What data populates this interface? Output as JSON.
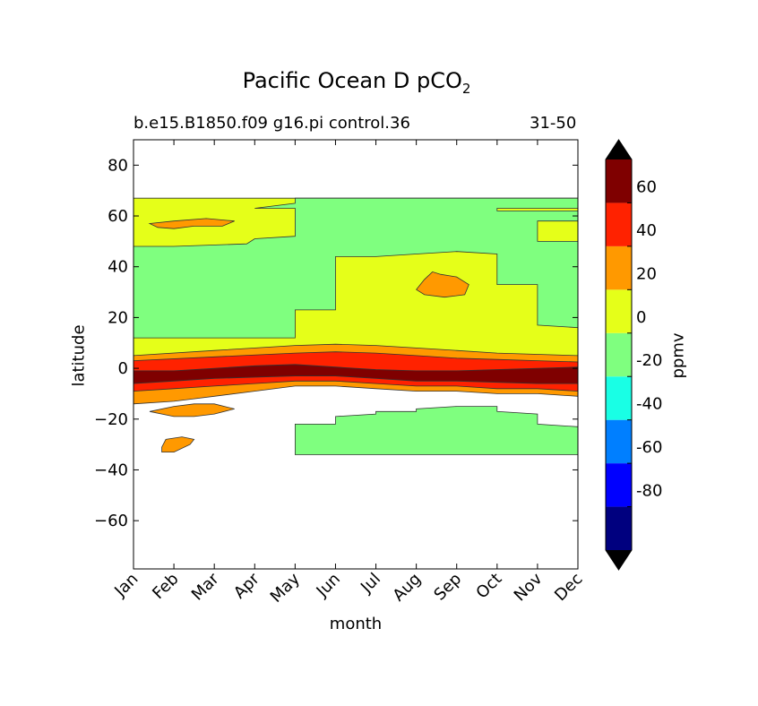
{
  "chart_data": {
    "type": "contourf",
    "title": "Pacific Ocean D pCO",
    "title_subscript": "2",
    "subtitle_left": "b.e15.B1850.f09 g16.pi control.36",
    "subtitle_right": "31-50",
    "xlabel": "month",
    "ylabel": "latitude",
    "colorbar_label": "ppmv",
    "x_ticks": [
      "Jan",
      "Feb",
      "Mar",
      "Apr",
      "May",
      "Jun",
      "Jul",
      "Aug",
      "Sep",
      "Oct",
      "Nov",
      "Dec"
    ],
    "y_ticks": [
      80,
      60,
      40,
      20,
      0,
      -20,
      -40,
      -60
    ],
    "y_tick_labels": [
      "80",
      "60",
      "40",
      "20",
      "0",
      "−20",
      "−40",
      "−60"
    ],
    "ylim": [
      -79,
      90
    ],
    "data_lat_range": [
      -34,
      67
    ],
    "colorbar": {
      "ticks": [
        "60",
        "40",
        "20",
        "0",
        "-20",
        "-40",
        "-60",
        "-80"
      ],
      "tick_values": [
        60,
        40,
        20,
        0,
        -20,
        -40,
        -60,
        -80
      ],
      "levels": [
        -100,
        -80,
        -60,
        -40,
        -20,
        0,
        20,
        40,
        60,
        80
      ],
      "colors": [
        "#00007f",
        "#0000ff",
        "#007fff",
        "#19ffe5",
        "#7fff7f",
        "#e5ff19",
        "#ff9900",
        "#ff2200",
        "#7f0000"
      ],
      "extend_colors": {
        "under": "#000000",
        "over": "#000000"
      }
    },
    "regions": [
      {
        "name": "band-positive-north",
        "level": "0 to 20",
        "color": "#e5ff19",
        "outline": [
          [
            0,
            67
          ],
          [
            11,
            67
          ],
          [
            11,
            5
          ],
          [
            0,
            5
          ]
        ]
      },
      {
        "name": "north-green",
        "level": "-20 to 0",
        "color": "#7fff7f",
        "outline": [
          [
            0,
            48
          ],
          [
            1,
            48
          ],
          [
            2.8,
            49
          ],
          [
            3,
            51
          ],
          [
            4,
            52
          ],
          [
            4,
            63
          ],
          [
            3,
            63
          ],
          [
            4,
            65
          ],
          [
            4,
            67
          ],
          [
            7.7,
            67
          ],
          [
            8.3,
            67
          ],
          [
            11,
            67
          ],
          [
            11,
            63
          ],
          [
            9,
            63
          ],
          [
            9,
            62
          ],
          [
            11,
            62
          ],
          [
            11,
            58
          ],
          [
            10,
            58
          ],
          [
            10,
            50
          ],
          [
            11,
            50
          ],
          [
            11,
            16
          ],
          [
            10,
            17
          ],
          [
            10,
            33
          ],
          [
            9,
            33
          ],
          [
            9,
            45
          ],
          [
            8,
            46
          ],
          [
            7,
            45
          ],
          [
            6,
            44
          ],
          [
            5,
            44
          ],
          [
            5,
            23
          ],
          [
            4,
            23
          ],
          [
            4,
            12
          ],
          [
            0,
            12
          ]
        ]
      },
      {
        "name": "band-20-40",
        "level": "20 to 40",
        "color": "#ff9900",
        "outline": [
          [
            0,
            5
          ],
          [
            2,
            7
          ],
          [
            4,
            9
          ],
          [
            5,
            9.5
          ],
          [
            6,
            9
          ],
          [
            7,
            8
          ],
          [
            8,
            7
          ],
          [
            9,
            6
          ],
          [
            10,
            5.5
          ],
          [
            11,
            5
          ],
          [
            11,
            -11
          ],
          [
            10,
            -10
          ],
          [
            9,
            -10
          ],
          [
            8,
            -9
          ],
          [
            7,
            -9
          ],
          [
            6,
            -8
          ],
          [
            5,
            -7
          ],
          [
            4,
            -7
          ],
          [
            3,
            -9
          ],
          [
            2,
            -11
          ],
          [
            1.5,
            -12
          ],
          [
            1,
            -13
          ],
          [
            0,
            -14
          ]
        ]
      },
      {
        "name": "band-40-60",
        "level": "40 to 60",
        "color": "#ff2200",
        "outline": [
          [
            0,
            3
          ],
          [
            2,
            4.5
          ],
          [
            4,
            6
          ],
          [
            5,
            6.5
          ],
          [
            6,
            6
          ],
          [
            7,
            5
          ],
          [
            8,
            4
          ],
          [
            9,
            3.5
          ],
          [
            10,
            3
          ],
          [
            11,
            2.5
          ],
          [
            11,
            -9
          ],
          [
            10,
            -8
          ],
          [
            9,
            -8
          ],
          [
            8,
            -7
          ],
          [
            7,
            -7
          ],
          [
            6,
            -6
          ],
          [
            5,
            -5
          ],
          [
            4,
            -5
          ],
          [
            3,
            -6
          ],
          [
            2,
            -7
          ],
          [
            1,
            -8
          ],
          [
            0,
            -9
          ]
        ]
      },
      {
        "name": "band-above-60",
        "level": "60 to 80",
        "color": "#7f0000",
        "outline": [
          [
            0,
            -1
          ],
          [
            1,
            -1
          ],
          [
            2,
            0
          ],
          [
            3,
            1
          ],
          [
            4,
            1.5
          ],
          [
            5,
            0.5
          ],
          [
            6,
            -0.5
          ],
          [
            7,
            -1
          ],
          [
            8,
            -1
          ],
          [
            9,
            -0.5
          ],
          [
            10,
            0
          ],
          [
            11,
            0.5
          ],
          [
            11,
            -6
          ],
          [
            10,
            -6
          ],
          [
            9,
            -5.5
          ],
          [
            8,
            -5
          ],
          [
            7,
            -5
          ],
          [
            6,
            -4
          ],
          [
            5,
            -3
          ],
          [
            4,
            -3
          ],
          [
            3,
            -3.5
          ],
          [
            2,
            -4
          ],
          [
            1,
            -5
          ],
          [
            0,
            -6
          ]
        ]
      },
      {
        "name": "south-green",
        "level": "-20 to 0",
        "color": "#7fff7f",
        "outline": [
          [
            4,
            -34
          ],
          [
            4,
            -22
          ],
          [
            5,
            -22
          ],
          [
            5,
            -19
          ],
          [
            6,
            -18
          ],
          [
            6,
            -17
          ],
          [
            7,
            -17
          ],
          [
            7,
            -16
          ],
          [
            8,
            -15
          ],
          [
            9,
            -15
          ],
          [
            9,
            -17
          ],
          [
            10,
            -18
          ],
          [
            10,
            -22
          ],
          [
            11,
            -23
          ],
          [
            11,
            -34
          ]
        ]
      },
      {
        "name": "north-orange-patch",
        "level": "20 to 40",
        "color": "#ff9900",
        "outline": [
          [
            0.4,
            57
          ],
          [
            1,
            58
          ],
          [
            1.8,
            59
          ],
          [
            2.5,
            58
          ],
          [
            2.2,
            56
          ],
          [
            1.5,
            56
          ],
          [
            1,
            55
          ],
          [
            0.6,
            55.5
          ]
        ]
      },
      {
        "name": "central-orange-patch",
        "level": "20 to 40",
        "color": "#ff9900",
        "outline": [
          [
            7,
            31
          ],
          [
            7.2,
            35
          ],
          [
            7.4,
            38
          ],
          [
            7.6,
            37
          ],
          [
            8,
            36
          ],
          [
            8.3,
            33
          ],
          [
            8.2,
            29
          ],
          [
            7.7,
            28
          ],
          [
            7.2,
            29
          ]
        ]
      },
      {
        "name": "south-orange-patch-1",
        "level": "20 to 40",
        "color": "#ff9900",
        "outline": [
          [
            0.4,
            -17
          ],
          [
            1,
            -15
          ],
          [
            1.5,
            -14
          ],
          [
            2,
            -14
          ],
          [
            2.5,
            -16
          ],
          [
            2,
            -18
          ],
          [
            1.5,
            -19
          ],
          [
            1,
            -19
          ]
        ]
      },
      {
        "name": "south-orange-patch-2",
        "level": "20 to 40",
        "color": "#ff9900",
        "outline": [
          [
            0.7,
            -31
          ],
          [
            0.8,
            -28
          ],
          [
            1.2,
            -27
          ],
          [
            1.5,
            -28
          ],
          [
            1.4,
            -30
          ],
          [
            1,
            -33
          ],
          [
            0.7,
            -33
          ]
        ]
      }
    ]
  }
}
